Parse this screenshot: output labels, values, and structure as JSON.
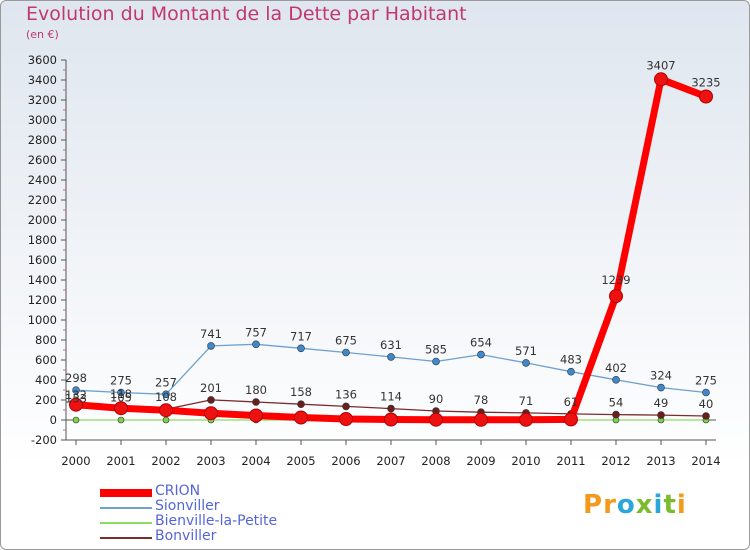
{
  "title": "Evolution du Montant de la Dette par Habitant",
  "subtitle": "(en €)",
  "logo": {
    "text": "Proxiti",
    "colors": [
      "#f39a1c",
      "#f39a1c",
      "#2aa7d8",
      "#7dbb2e",
      "#2aa7d8",
      "#7dbb2e",
      "#f39a1c"
    ]
  },
  "chart_data": {
    "type": "line",
    "title": "Evolution du Montant de la Dette par Habitant",
    "subtitle": "(en €)",
    "x": [
      "2000",
      "2001",
      "2002",
      "2003",
      "2004",
      "2005",
      "2006",
      "2007",
      "2008",
      "2009",
      "2010",
      "2011",
      "2012",
      "2013",
      "2014"
    ],
    "ylim": [
      -200,
      3600
    ],
    "yticks": [
      -200,
      0,
      200,
      400,
      600,
      800,
      1000,
      1200,
      1400,
      1600,
      1800,
      2000,
      2200,
      2400,
      2600,
      2800,
      3000,
      3200,
      3400,
      3600
    ],
    "grid": false,
    "legend_position": "bottom-left",
    "series": [
      {
        "name": "CRION",
        "color": "#ff0000",
        "marker_color": "#ee1111",
        "values": [
          153,
          118,
          98,
          68,
          45,
          25,
          10,
          5,
          3,
          2,
          2,
          6,
          1239,
          3407,
          3235
        ],
        "labels": [
          "153",
          "118",
          "",
          "",
          "",
          "",
          "",
          "",
          "",
          "",
          "",
          "",
          "1239",
          "3407",
          "3235"
        ]
      },
      {
        "name": "Sionviller",
        "color": "#6ea0d0",
        "marker_color": "#3f88cc",
        "values": [
          298,
          275,
          257,
          741,
          757,
          717,
          675,
          631,
          585,
          654,
          571,
          483,
          402,
          324,
          275
        ],
        "labels": [
          "298",
          "275",
          "257",
          "741",
          "757",
          "717",
          "675",
          "631",
          "585",
          "654",
          "571",
          "483",
          "402",
          "324",
          "275"
        ]
      },
      {
        "name": "Bienville-la-Petite",
        "color": "#8fdc60",
        "marker_color": "#7ed04a",
        "values": [
          0,
          0,
          0,
          0,
          0,
          0,
          0,
          0,
          0,
          0,
          0,
          0,
          0,
          0,
          0
        ],
        "labels": [
          "",
          "",
          "",
          "",
          "",
          "",
          "",
          "",
          "",
          "",
          "",
          "",
          "",
          "",
          ""
        ]
      },
      {
        "name": "Bonviller",
        "color": "#7b2d2d",
        "marker_color": "#6a1f1f",
        "values": [
          132,
          105,
          108,
          201,
          180,
          158,
          136,
          114,
          90,
          78,
          71,
          61,
          54,
          49,
          40
        ],
        "labels": [
          "132",
          "105",
          "108",
          "201",
          "180",
          "158",
          "136",
          "114",
          "90",
          "78",
          "71",
          "61",
          "54",
          "49",
          "40"
        ]
      }
    ]
  }
}
